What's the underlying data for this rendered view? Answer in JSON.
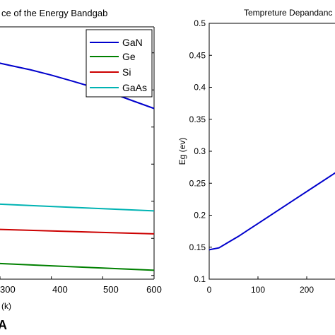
{
  "chart_data": [
    {
      "type": "line",
      "title": "ce of the Energy Bandgab",
      "xlabel": "(k)",
      "ylabel": "",
      "xlim": [
        200,
        600
      ],
      "x_ticks": [
        "300",
        "400",
        "500",
        "600"
      ],
      "grid": false,
      "legend_position": "top-right",
      "series": [
        {
          "name": "GaN",
          "color": "#0000cc",
          "x": [
            240,
            280,
            320,
            360,
            400,
            440,
            480,
            520,
            560,
            600
          ],
          "y": [
            3.43,
            3.39,
            3.33,
            3.27,
            3.2,
            3.12,
            3.04,
            2.95,
            2.85,
            2.75
          ]
        },
        {
          "name": "Ge",
          "color": "#008000",
          "x": [
            200,
            300,
            400,
            500,
            600
          ],
          "y": [
            0.7,
            0.66,
            0.63,
            0.6,
            0.57
          ]
        },
        {
          "name": "Si",
          "color": "#cc0000",
          "x": [
            200,
            300,
            400,
            500,
            600
          ],
          "y": [
            1.14,
            1.12,
            1.1,
            1.08,
            1.06
          ]
        },
        {
          "name": "GaAs",
          "color": "#00b3b3",
          "x": [
            200,
            300,
            400,
            500,
            600
          ],
          "y": [
            1.49,
            1.46,
            1.43,
            1.4,
            1.37
          ]
        }
      ]
    },
    {
      "type": "line",
      "title": "Tempreture Depandanc",
      "xlabel": "",
      "ylabel": "Eg (ev)",
      "xlim": [
        0,
        300
      ],
      "ylim": [
        0.1,
        0.5
      ],
      "x_ticks": [
        "0",
        "100",
        "200"
      ],
      "y_ticks": [
        "0.1",
        "0.15",
        "0.2",
        "0.25",
        "0.3",
        "0.35",
        "0.4",
        "0.45",
        "0.5"
      ],
      "grid": false,
      "series": [
        {
          "name": "",
          "color": "#0000cc",
          "x": [
            0,
            20,
            40,
            60,
            80,
            100,
            140,
            180,
            220,
            260,
            300
          ],
          "y": [
            0.146,
            0.149,
            0.158,
            0.167,
            0.177,
            0.187,
            0.207,
            0.227,
            0.247,
            0.267,
            0.285
          ]
        }
      ]
    }
  ],
  "panel_label": "A"
}
